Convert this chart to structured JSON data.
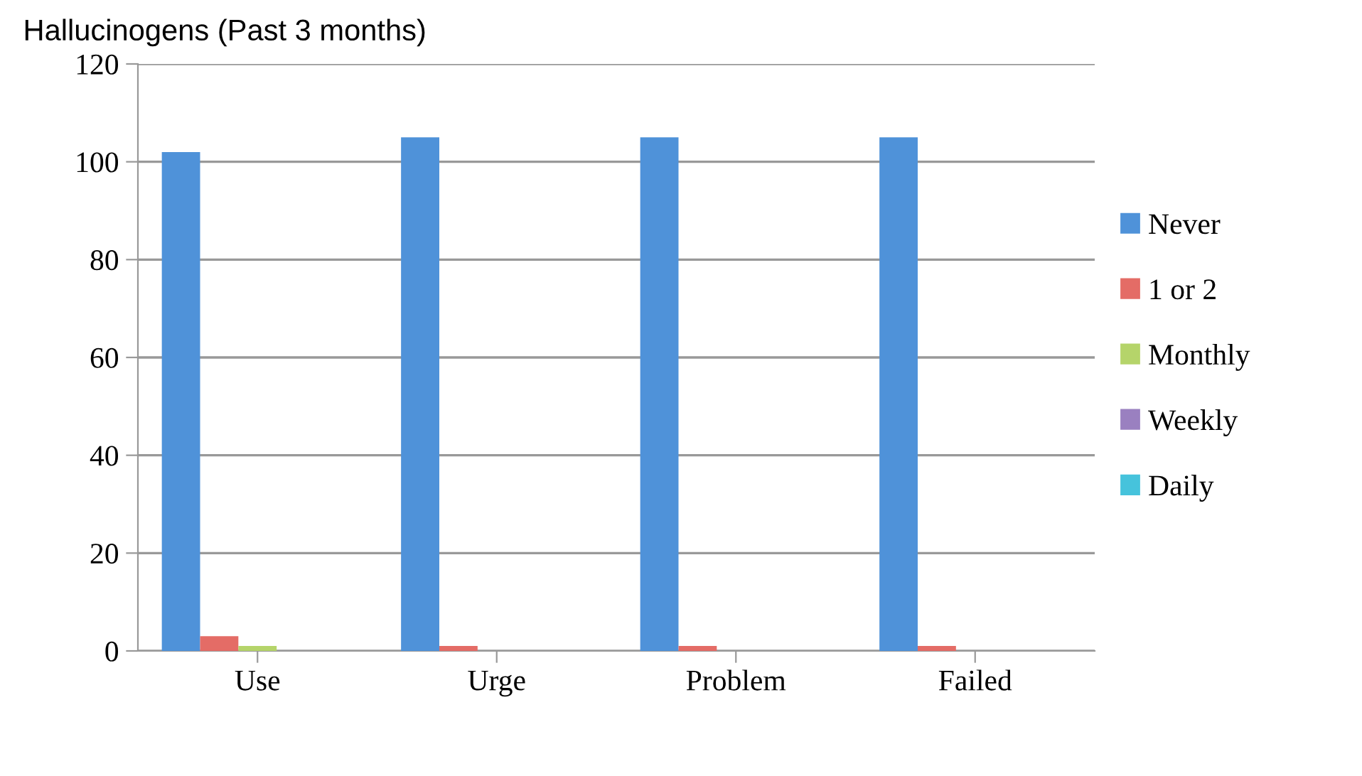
{
  "chart_data": {
    "type": "bar",
    "title": "Hallucinogens (Past 3 months)",
    "categories": [
      "Use",
      "Urge",
      "Problem",
      "Failed"
    ],
    "series": [
      {
        "name": "Never",
        "color": "#4f92d9",
        "values": [
          102,
          105,
          105,
          105
        ]
      },
      {
        "name": "1 or 2",
        "color": "#e46c66",
        "values": [
          3,
          1,
          1,
          1
        ]
      },
      {
        "name": "Monthly",
        "color": "#b5d46a",
        "values": [
          1,
          0,
          0,
          0
        ]
      },
      {
        "name": "Weekly",
        "color": "#9a80c0",
        "values": [
          0,
          0,
          0,
          0
        ]
      },
      {
        "name": "Daily",
        "color": "#46c3dc",
        "values": [
          0,
          0,
          0,
          0
        ]
      }
    ],
    "ylim": [
      0,
      120
    ],
    "yticks": [
      0,
      20,
      40,
      60,
      80,
      100,
      120
    ],
    "grid": "y",
    "legend": "right"
  }
}
